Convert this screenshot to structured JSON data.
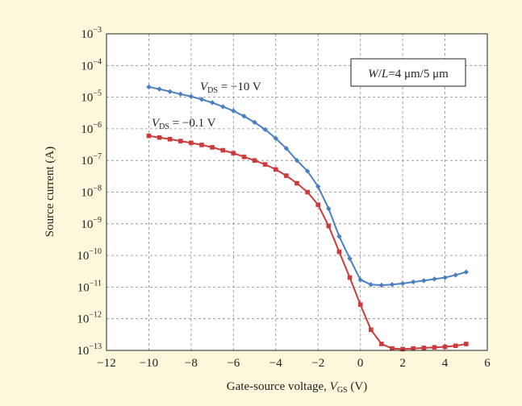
{
  "chart_data": {
    "type": "line",
    "title": "",
    "xlabel": "Gate-source voltage, ",
    "xlabel_var": "V",
    "xlabel_sub": "GS",
    "xlabel_unit": " (V)",
    "ylabel": "Source current (A)",
    "xlim": [
      -12,
      6
    ],
    "ylim_log10": [
      -13,
      -3
    ],
    "yscale": "log",
    "grid": true,
    "x_ticks": [
      "−12",
      "−10",
      "−8",
      "−6",
      "−4",
      "−2",
      "0",
      "2",
      "4",
      "6"
    ],
    "y_tick_exponents": [
      "−3",
      "−4",
      "−5",
      "−6",
      "−7",
      "−8",
      "−9",
      "−10",
      "−11",
      "−12",
      "−13"
    ],
    "y_tick_base": "10",
    "box_annotation": {
      "prefix": "W",
      "slash": "/",
      "suffix": "L",
      "value": "=4 μm/5 μm"
    },
    "series": [
      {
        "name": "VDS = −10 V",
        "label_var": "V",
        "label_sub": "DS",
        "label_value": " = −10 V",
        "color": "#4a7fc1",
        "marker": "diamond",
        "x": [
          -10,
          -9.5,
          -9,
          -8.5,
          -8,
          -7.5,
          -7,
          -6.5,
          -6,
          -5.5,
          -5,
          -4.5,
          -4,
          -3.5,
          -3,
          -2.5,
          -2,
          -1.5,
          -1,
          -0.5,
          0,
          0.5,
          1,
          1.5,
          2,
          2.5,
          3,
          3.5,
          4,
          4.5,
          5
        ],
        "y": [
          2.1e-05,
          1.8e-05,
          1.5e-05,
          1.25e-05,
          1.05e-05,
          8.5e-06,
          6.7e-06,
          5e-06,
          3.7e-06,
          2.5e-06,
          1.6e-06,
          9.5e-07,
          5e-07,
          2.4e-07,
          1e-07,
          4.6e-08,
          1.5e-08,
          3e-09,
          4e-10,
          8e-11,
          1.7e-11,
          1.2e-11,
          1.15e-11,
          1.2e-11,
          1.3e-11,
          1.45e-11,
          1.6e-11,
          1.8e-11,
          2e-11,
          2.4e-11,
          3e-11
        ]
      },
      {
        "name": "VDS = −0.1 V",
        "label_var": "V",
        "label_sub": "DS",
        "label_value": " = −0.1 V",
        "color": "#cc3b3b",
        "marker": "square",
        "x": [
          -10,
          -9.5,
          -9,
          -8.5,
          -8,
          -7.5,
          -7,
          -6.5,
          -6,
          -5.5,
          -5,
          -4.5,
          -4,
          -3.5,
          -3,
          -2.5,
          -2,
          -1.5,
          -1,
          -0.5,
          0,
          0.5,
          1,
          1.5,
          2,
          2.5,
          3,
          3.5,
          4,
          4.5,
          5
        ],
        "y": [
          6e-07,
          5.3e-07,
          4.7e-07,
          4.1e-07,
          3.6e-07,
          3.1e-07,
          2.6e-07,
          2.1e-07,
          1.7e-07,
          1.3e-07,
          1e-07,
          7.5e-08,
          5.2e-08,
          3.3e-08,
          1.9e-08,
          1e-08,
          4e-09,
          8.5e-10,
          1.3e-10,
          2e-11,
          2.8e-12,
          4.5e-13,
          1.6e-13,
          1.15e-13,
          1.1e-13,
          1.15e-13,
          1.2e-13,
          1.25e-13,
          1.3e-13,
          1.4e-13,
          1.6e-13
        ]
      }
    ]
  }
}
